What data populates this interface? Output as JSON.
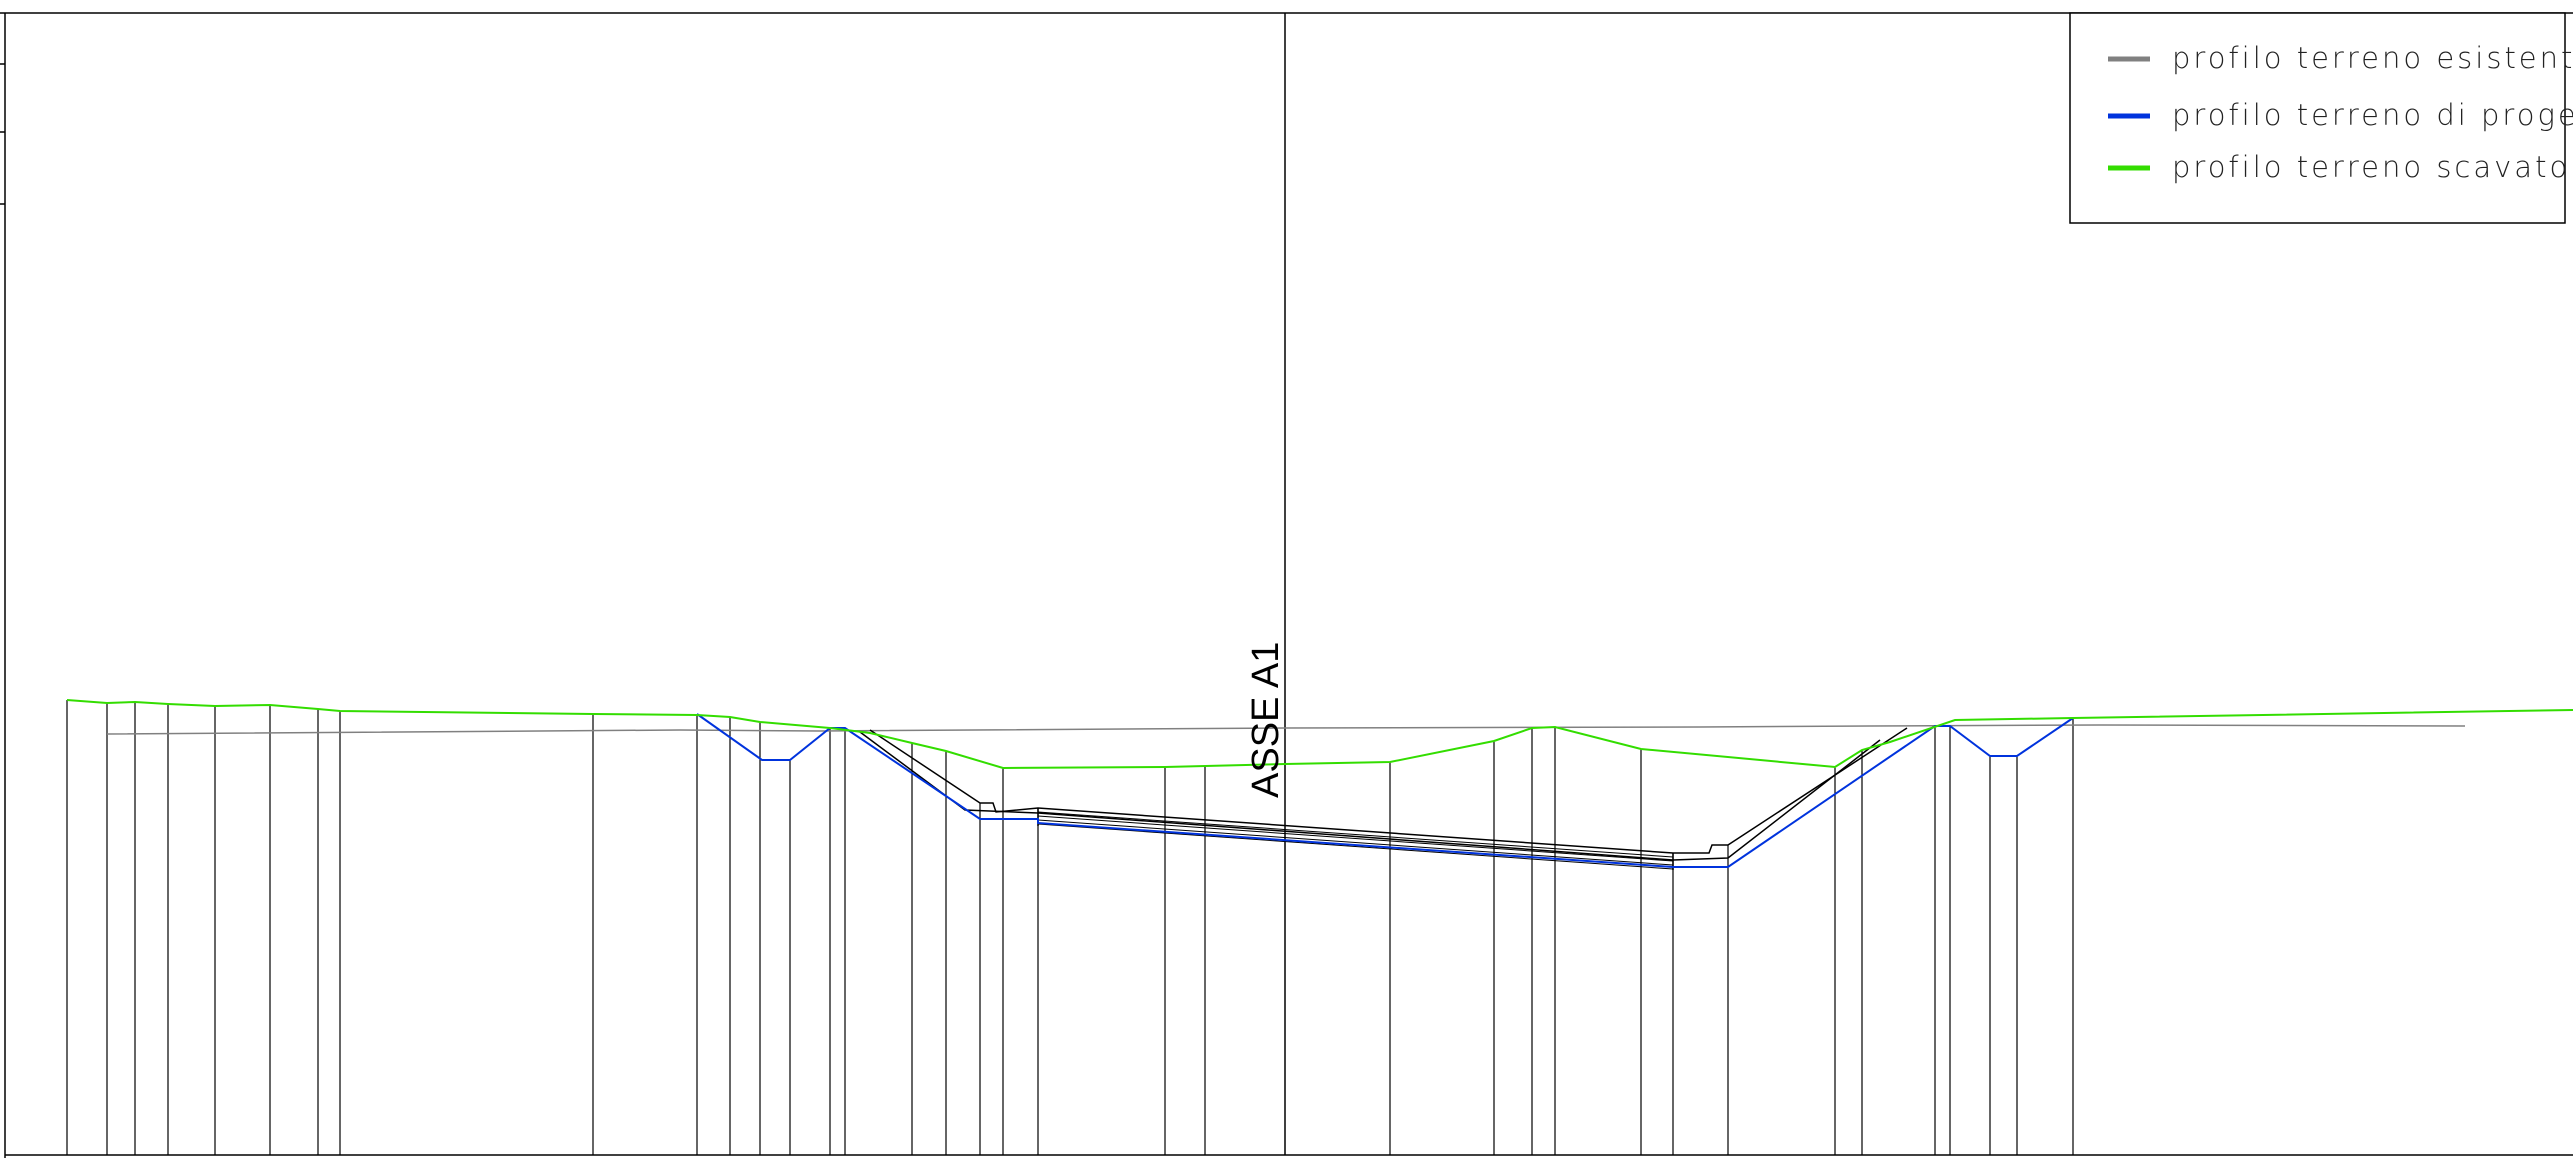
{
  "axis_label": "ASSE A1",
  "legend": {
    "items": [
      {
        "label": "profilo terreno esistente",
        "color": "#808080"
      },
      {
        "label": "profilo terreno di progetto",
        "color": "#0033dd"
      },
      {
        "label": "profilo terreno scavato",
        "color": "#33dd00"
      }
    ]
  },
  "colors": {
    "existing": "#808080",
    "project": "#0033dd",
    "excavated": "#33dd00",
    "structure": "#000000",
    "background": "#ffffff"
  }
}
